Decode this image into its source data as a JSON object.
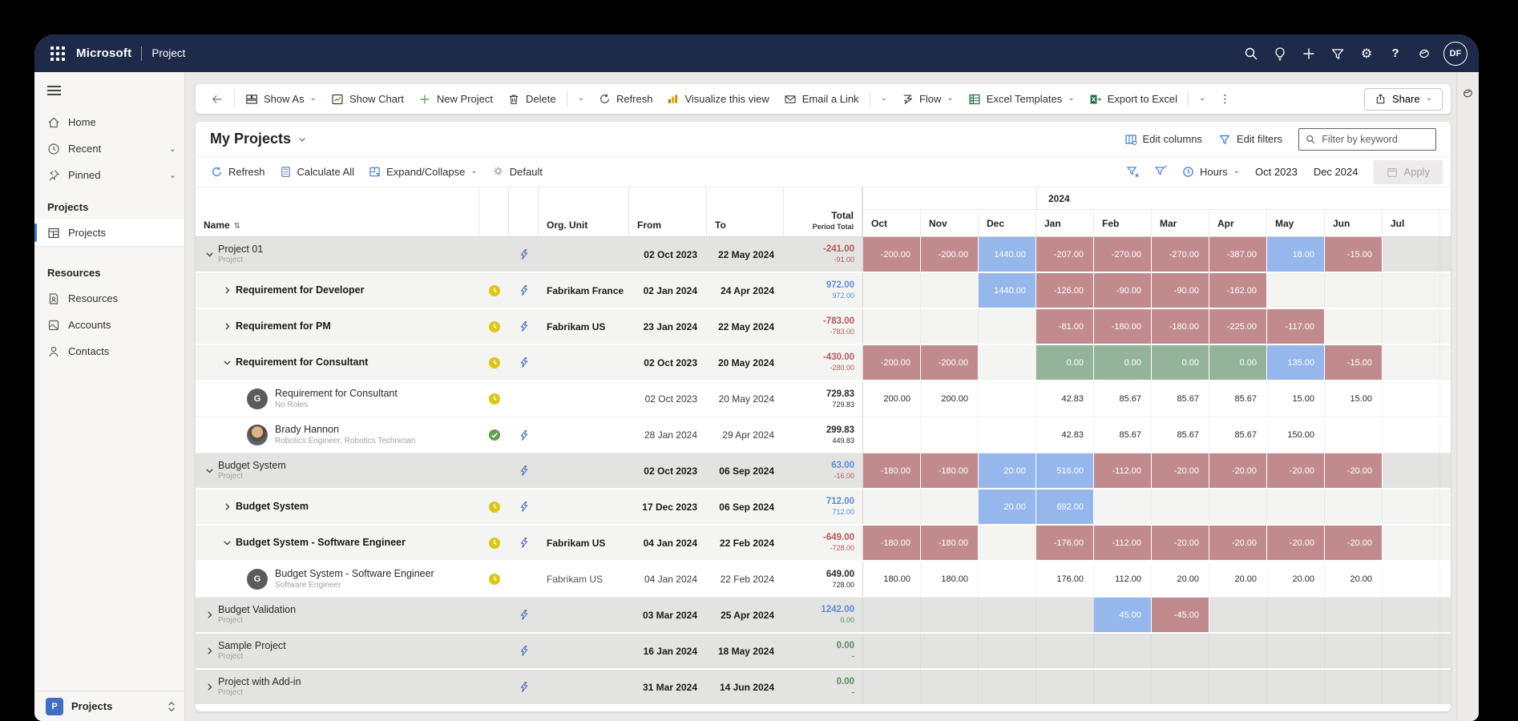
{
  "topbar": {
    "brand": "Microsoft",
    "app": "Project",
    "avatar_initials": "DF"
  },
  "sidebar": {
    "home": "Home",
    "recent": "Recent",
    "pinned": "Pinned",
    "group_projects": "Projects",
    "item_projects": "Projects",
    "group_resources": "Resources",
    "item_resources": "Resources",
    "item_accounts": "Accounts",
    "item_contacts": "Contacts",
    "footer_badge": "P",
    "footer_label": "Projects"
  },
  "toolbar": {
    "show_as": "Show As",
    "show_chart": "Show Chart",
    "new_project": "New Project",
    "delete": "Delete",
    "refresh": "Refresh",
    "visualize": "Visualize this view",
    "email": "Email a Link",
    "flow": "Flow",
    "excel_templates": "Excel Templates",
    "export_excel": "Export to Excel",
    "share": "Share"
  },
  "view": {
    "title": "My Projects",
    "edit_columns": "Edit columns",
    "edit_filters": "Edit filters",
    "filter_placeholder": "Filter by keyword",
    "refresh": "Refresh",
    "calculate_all": "Calculate All",
    "expand_collapse": "Expand/Collapse",
    "default": "Default",
    "hours": "Hours",
    "date_from": "Oct 2023",
    "date_to": "Dec 2024",
    "apply": "Apply"
  },
  "palette": {
    "topbar": "#1e2a4a",
    "accent": "#3b78d4",
    "cell_red": "#c18b8e",
    "cell_blue": "#95b7ec",
    "cell_green": "#93b49b",
    "text_red": "#b2595f",
    "text_blue": "#5b8ed6",
    "text_green": "#5a8a5a"
  },
  "grid": {
    "headers": {
      "name": "Name",
      "org": "Org. Unit",
      "from": "From",
      "to": "To",
      "total": "Total",
      "period_total": "Period Total"
    },
    "year_label": "2024",
    "months": [
      "Oct",
      "Nov",
      "Dec",
      "Jan",
      "Feb",
      "Mar",
      "Apr",
      "May",
      "Jun",
      "Jul"
    ],
    "rows": [
      {
        "name": "Project 01",
        "sub": "Project",
        "shade": "project",
        "level": 0,
        "chevron": "down",
        "avatar": null,
        "status": null,
        "flow": true,
        "org": "",
        "from": "02 Oct 2023",
        "to": "22 May 2024",
        "total": "-241.00",
        "total_c": "red",
        "period": "-91.00",
        "period_c": "red",
        "cells": [
          {
            "v": "-200.00",
            "c": "r"
          },
          {
            "v": "-200.00",
            "c": "r"
          },
          {
            "v": "1440.00",
            "c": "b"
          },
          {
            "v": "-207.00",
            "c": "r"
          },
          {
            "v": "-270.00",
            "c": "r"
          },
          {
            "v": "-270.00",
            "c": "r"
          },
          {
            "v": "-387.00",
            "c": "r"
          },
          {
            "v": "18.00",
            "c": "b"
          },
          {
            "v": "-15.00",
            "c": "r"
          },
          {
            "v": ""
          }
        ]
      },
      {
        "name": "Requirement for Developer",
        "sub": "",
        "shade": "req",
        "level": 1,
        "chevron": "right",
        "avatar": null,
        "status": "clock",
        "flow": true,
        "org": "Fabrikam France",
        "from": "02 Jan 2024",
        "to": "24 Apr 2024",
        "total": "972.00",
        "total_c": "blue",
        "period": "972.00",
        "period_c": "blue",
        "cells": [
          {
            "v": ""
          },
          {
            "v": ""
          },
          {
            "v": "1440.00",
            "c": "b"
          },
          {
            "v": "-126.00",
            "c": "r"
          },
          {
            "v": "-90.00",
            "c": "r"
          },
          {
            "v": "-90.00",
            "c": "r"
          },
          {
            "v": "-162.00",
            "c": "r"
          },
          {
            "v": ""
          },
          {
            "v": ""
          },
          {
            "v": ""
          }
        ]
      },
      {
        "name": "Requirement for PM",
        "sub": "",
        "shade": "req",
        "level": 1,
        "chevron": "right",
        "avatar": null,
        "status": "clock",
        "flow": true,
        "org": "Fabrikam US",
        "from": "23 Jan 2024",
        "to": "22 May 2024",
        "total": "-783.00",
        "total_c": "red",
        "period": "-783.00",
        "period_c": "red",
        "cells": [
          {
            "v": ""
          },
          {
            "v": ""
          },
          {
            "v": ""
          },
          {
            "v": "-81.00",
            "c": "r"
          },
          {
            "v": "-180.00",
            "c": "r"
          },
          {
            "v": "-180.00",
            "c": "r"
          },
          {
            "v": "-225.00",
            "c": "r"
          },
          {
            "v": "-117.00",
            "c": "r"
          },
          {
            "v": ""
          },
          {
            "v": ""
          }
        ]
      },
      {
        "name": "Requirement for Consultant",
        "sub": "",
        "shade": "req",
        "level": 1,
        "chevron": "down",
        "avatar": null,
        "status": "clock",
        "flow": true,
        "org": "",
        "from": "02 Oct 2023",
        "to": "20 May 2024",
        "total": "-430.00",
        "total_c": "red",
        "period": "-280.00",
        "period_c": "red",
        "cells": [
          {
            "v": "-200.00",
            "c": "r"
          },
          {
            "v": "-200.00",
            "c": "r"
          },
          {
            "v": ""
          },
          {
            "v": "0.00",
            "c": "g"
          },
          {
            "v": "0.00",
            "c": "g"
          },
          {
            "v": "0.00",
            "c": "g"
          },
          {
            "v": "0.00",
            "c": "g"
          },
          {
            "v": "135.00",
            "c": "b"
          },
          {
            "v": "-15.00",
            "c": "r"
          },
          {
            "v": ""
          }
        ]
      },
      {
        "name": "Requirement for Consultant",
        "sub": "No Roles",
        "shade": "leaf",
        "level": 2,
        "chevron": null,
        "avatar": "G",
        "status": "clock",
        "flow": false,
        "org": "",
        "from": "02 Oct 2023",
        "to": "20 May 2024",
        "total": "729.83",
        "total_c": "dark",
        "period": "729.83",
        "period_c": "dark",
        "cells": [
          {
            "v": "200.00",
            "c": "p"
          },
          {
            "v": "200.00",
            "c": "p"
          },
          {
            "v": ""
          },
          {
            "v": "42.83",
            "c": "p"
          },
          {
            "v": "85.67",
            "c": "p"
          },
          {
            "v": "85.67",
            "c": "p"
          },
          {
            "v": "85.67",
            "c": "p"
          },
          {
            "v": "15.00",
            "c": "p"
          },
          {
            "v": "15.00",
            "c": "p"
          },
          {
            "v": ""
          }
        ]
      },
      {
        "name": "Brady Hannon",
        "sub": "Robotics Engineer, Robotics Technician",
        "shade": "leaf",
        "level": 2,
        "chevron": null,
        "avatar": "photo",
        "status": "check",
        "flow": true,
        "org": "",
        "from": "28 Jan 2024",
        "to": "29 Apr 2024",
        "total": "299.83",
        "total_c": "dark",
        "period": "449.83",
        "period_c": "dark",
        "cells": [
          {
            "v": ""
          },
          {
            "v": ""
          },
          {
            "v": ""
          },
          {
            "v": "42.83",
            "c": "p"
          },
          {
            "v": "85.67",
            "c": "p"
          },
          {
            "v": "85.67",
            "c": "p"
          },
          {
            "v": "85.67",
            "c": "p"
          },
          {
            "v": "150.00",
            "c": "p"
          },
          {
            "v": ""
          },
          {
            "v": ""
          }
        ]
      },
      {
        "name": "Budget System",
        "sub": "Project",
        "shade": "project",
        "level": 0,
        "chevron": "down",
        "avatar": null,
        "status": null,
        "flow": true,
        "org": "",
        "from": "02 Oct 2023",
        "to": "06 Sep 2024",
        "total": "63.00",
        "total_c": "blue",
        "period": "-16.00",
        "period_c": "red",
        "cells": [
          {
            "v": "-180.00",
            "c": "r"
          },
          {
            "v": "-180.00",
            "c": "r"
          },
          {
            "v": "20.00",
            "c": "b"
          },
          {
            "v": "516.00",
            "c": "b"
          },
          {
            "v": "-112.00",
            "c": "r"
          },
          {
            "v": "-20.00",
            "c": "r"
          },
          {
            "v": "-20.00",
            "c": "r"
          },
          {
            "v": "-20.00",
            "c": "r"
          },
          {
            "v": "-20.00",
            "c": "r"
          },
          {
            "v": ""
          }
        ]
      },
      {
        "name": "Budget System",
        "sub": "",
        "shade": "req",
        "level": 1,
        "chevron": "right",
        "avatar": null,
        "status": "clock",
        "flow": true,
        "org": "",
        "from": "17 Dec 2023",
        "to": "06 Sep 2024",
        "total": "712.00",
        "total_c": "blue",
        "period": "712.00",
        "period_c": "blue",
        "cells": [
          {
            "v": ""
          },
          {
            "v": ""
          },
          {
            "v": "20.00",
            "c": "b"
          },
          {
            "v": "692.00",
            "c": "b"
          },
          {
            "v": ""
          },
          {
            "v": ""
          },
          {
            "v": ""
          },
          {
            "v": ""
          },
          {
            "v": ""
          },
          {
            "v": ""
          }
        ]
      },
      {
        "name": "Budget System - Software Engineer",
        "sub": "",
        "shade": "req",
        "level": 1,
        "chevron": "down",
        "avatar": null,
        "status": "clock",
        "flow": true,
        "org": "Fabrikam US",
        "from": "04 Jan 2024",
        "to": "22 Feb 2024",
        "total": "-649.00",
        "total_c": "red",
        "period": "-728.00",
        "period_c": "red",
        "cells": [
          {
            "v": "-180.00",
            "c": "r"
          },
          {
            "v": "-180.00",
            "c": "r"
          },
          {
            "v": ""
          },
          {
            "v": "-176.00",
            "c": "r"
          },
          {
            "v": "-112.00",
            "c": "r"
          },
          {
            "v": "-20.00",
            "c": "r"
          },
          {
            "v": "-20.00",
            "c": "r"
          },
          {
            "v": "-20.00",
            "c": "r"
          },
          {
            "v": "-20.00",
            "c": "r"
          },
          {
            "v": ""
          }
        ]
      },
      {
        "name": "Budget System - Software Engineer",
        "sub": "Software Engineer",
        "shade": "leaf",
        "level": 2,
        "chevron": null,
        "avatar": "G",
        "status": "clock",
        "flow": false,
        "org": "Fabrikam US",
        "from": "04 Jan 2024",
        "to": "22 Feb 2024",
        "total": "649.00",
        "total_c": "dark",
        "period": "728.00",
        "period_c": "dark",
        "cells": [
          {
            "v": "180.00",
            "c": "p"
          },
          {
            "v": "180.00",
            "c": "p"
          },
          {
            "v": ""
          },
          {
            "v": "176.00",
            "c": "p"
          },
          {
            "v": "112.00",
            "c": "p"
          },
          {
            "v": "20.00",
            "c": "p"
          },
          {
            "v": "20.00",
            "c": "p"
          },
          {
            "v": "20.00",
            "c": "p"
          },
          {
            "v": "20.00",
            "c": "p"
          },
          {
            "v": ""
          }
        ]
      },
      {
        "name": "Budget Validation",
        "sub": "Project",
        "shade": "project",
        "level": 0,
        "chevron": "right",
        "avatar": null,
        "status": null,
        "flow": true,
        "org": "",
        "from": "03 Mar 2024",
        "to": "25 Apr 2024",
        "total": "1242.00",
        "total_c": "blue",
        "period": "0.00",
        "period_c": "green",
        "cells": [
          {
            "v": ""
          },
          {
            "v": ""
          },
          {
            "v": ""
          },
          {
            "v": ""
          },
          {
            "v": "45.00",
            "c": "b"
          },
          {
            "v": "-45.00",
            "c": "r"
          },
          {
            "v": ""
          },
          {
            "v": ""
          },
          {
            "v": ""
          },
          {
            "v": ""
          }
        ]
      },
      {
        "name": "Sample Project",
        "sub": "Project",
        "shade": "project",
        "level": 0,
        "chevron": "right",
        "avatar": null,
        "status": null,
        "flow": true,
        "org": "",
        "from": "16 Jan 2024",
        "to": "18 May 2024",
        "total": "0.00",
        "total_c": "green",
        "period": "-",
        "period_c": "dark",
        "cells": [
          {
            "v": ""
          },
          {
            "v": ""
          },
          {
            "v": ""
          },
          {
            "v": ""
          },
          {
            "v": ""
          },
          {
            "v": ""
          },
          {
            "v": ""
          },
          {
            "v": ""
          },
          {
            "v": ""
          },
          {
            "v": ""
          }
        ]
      },
      {
        "name": "Project with Add-in",
        "sub": "Project",
        "shade": "project",
        "level": 0,
        "chevron": "right",
        "avatar": null,
        "status": null,
        "flow": true,
        "org": "",
        "from": "31 Mar 2024",
        "to": "14 Jun 2024",
        "total": "0.00",
        "total_c": "green",
        "period": "-",
        "period_c": "dark",
        "cells": [
          {
            "v": ""
          },
          {
            "v": ""
          },
          {
            "v": ""
          },
          {
            "v": ""
          },
          {
            "v": ""
          },
          {
            "v": ""
          },
          {
            "v": ""
          },
          {
            "v": ""
          },
          {
            "v": ""
          },
          {
            "v": ""
          }
        ]
      }
    ]
  }
}
